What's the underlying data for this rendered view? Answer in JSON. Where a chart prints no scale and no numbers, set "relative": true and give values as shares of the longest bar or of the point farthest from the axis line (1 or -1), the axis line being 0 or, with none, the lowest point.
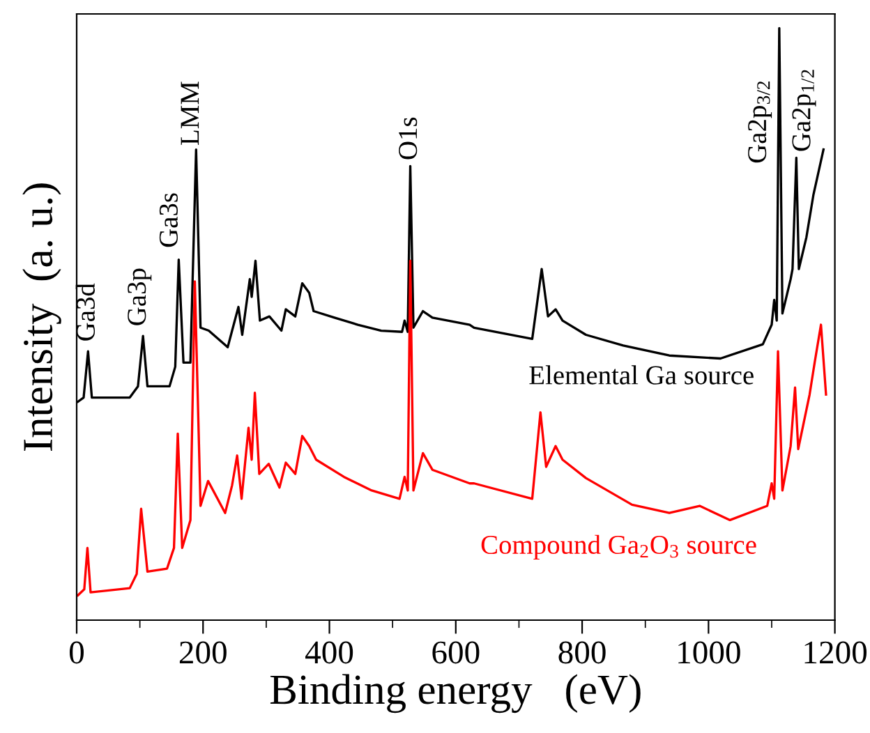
{
  "chart_data": {
    "type": "line",
    "relative": true,
    "xlabel": "Binding energy   (eV)",
    "ylabel": "Intensity  (a. u.)",
    "xlim": [
      0,
      1200
    ],
    "xticks": [
      0,
      {
        "value": 100,
        "label": null
      },
      200,
      {
        "value": 300,
        "label": null
      },
      400,
      {
        "value": 500,
        "label": null
      },
      600,
      {
        "value": 700,
        "label": null
      },
      800,
      {
        "value": 900,
        "label": null
      },
      1000,
      {
        "value": 1100,
        "label": null
      },
      1200
    ],
    "grid": false,
    "legend": false,
    "marker": "none",
    "line_style": "solid",
    "tick_labels": "x",
    "series": [
      {
        "name": "Elemental Ga source",
        "color": "#000000",
        "x": [
          2,
          11,
          18,
          24,
          84,
          97,
          105,
          112,
          147,
          156,
          161.5,
          169,
          180,
          189,
          196,
          209,
          239,
          246,
          256,
          262,
          274,
          277,
          283,
          290,
          305,
          324,
          331,
          346,
          357,
          368,
          375,
          408,
          445,
          482,
          515,
          519,
          524,
          528,
          533,
          548,
          563,
          622,
          629,
          721,
          736,
          746,
          758,
          769,
          806,
          865,
          938,
          1019,
          1086,
          1100,
          1104,
          1108,
          1112,
          1117,
          1130,
          1133,
          1139,
          1143,
          1155,
          1166,
          1182
        ],
        "values": [
          0.369,
          0.376,
          0.454,
          0.376,
          0.376,
          0.395,
          0.48,
          0.395,
          0.395,
          0.428,
          0.609,
          0.435,
          0.435,
          0.795,
          0.494,
          0.489,
          0.461,
          0.489,
          0.529,
          0.482,
          0.576,
          0.546,
          0.607,
          0.506,
          0.513,
          0.489,
          0.525,
          0.513,
          0.569,
          0.553,
          0.522,
          0.511,
          0.499,
          0.489,
          0.487,
          0.506,
          0.487,
          0.767,
          0.494,
          0.522,
          0.511,
          0.499,
          0.494,
          0.475,
          0.593,
          0.513,
          0.525,
          0.506,
          0.482,
          0.464,
          0.447,
          0.442,
          0.466,
          0.499,
          0.541,
          0.506,
          1.0,
          0.518,
          0.576,
          0.593,
          0.781,
          0.593,
          0.647,
          0.718,
          0.795
        ]
      },
      {
        "name": "Compound Ga$_{2}$O$_{3}$ source",
        "color": "#ff0000",
        "x": [
          2,
          12,
          17,
          22,
          84,
          95,
          102,
          112,
          143,
          154,
          160,
          167,
          180,
          187,
          196,
          208,
          235,
          246,
          254,
          261,
          272,
          277,
          282,
          289,
          304,
          321,
          331,
          346,
          357,
          368,
          379,
          423,
          467,
          511,
          519,
          524,
          528,
          533,
          548,
          563,
          622,
          629,
          721,
          734,
          743,
          758,
          769,
          806,
          879,
          938,
          986,
          1034,
          1093,
          1100,
          1104,
          1110,
          1117,
          1130,
          1137,
          1142,
          1160,
          1168,
          1178,
          1186
        ],
        "values": [
          0.042,
          0.052,
          0.122,
          0.047,
          0.054,
          0.078,
          0.188,
          0.082,
          0.087,
          0.122,
          0.315,
          0.122,
          0.169,
          0.572,
          0.193,
          0.235,
          0.181,
          0.228,
          0.278,
          0.205,
          0.325,
          0.271,
          0.384,
          0.247,
          0.264,
          0.224,
          0.266,
          0.247,
          0.311,
          0.294,
          0.271,
          0.242,
          0.219,
          0.205,
          0.242,
          0.219,
          0.607,
          0.219,
          0.282,
          0.254,
          0.231,
          0.231,
          0.205,
          0.351,
          0.259,
          0.294,
          0.271,
          0.24,
          0.195,
          0.181,
          0.193,
          0.169,
          0.193,
          0.231,
          0.205,
          0.454,
          0.219,
          0.294,
          0.393,
          0.289,
          0.381,
          0.435,
          0.499,
          0.381
        ]
      }
    ],
    "annotations": [
      {
        "text": "Ga3d",
        "x": 18,
        "y": 0.454
      },
      {
        "text": "Ga3p",
        "x": 105,
        "y": 0.48
      },
      {
        "text": "Ga3s",
        "x": 161.5,
        "y": 0.609
      },
      {
        "text": "LMM",
        "x": 189,
        "y": 0.795
      },
      {
        "text": "O1s",
        "x": 528,
        "y": 0.767
      },
      {
        "text": "Ga2p$_{3/2}$",
        "x": 1112,
        "y": 1.0
      },
      {
        "text": "Ga2p$_{1/2}$",
        "x": 1139,
        "y": 0.781
      }
    ]
  }
}
